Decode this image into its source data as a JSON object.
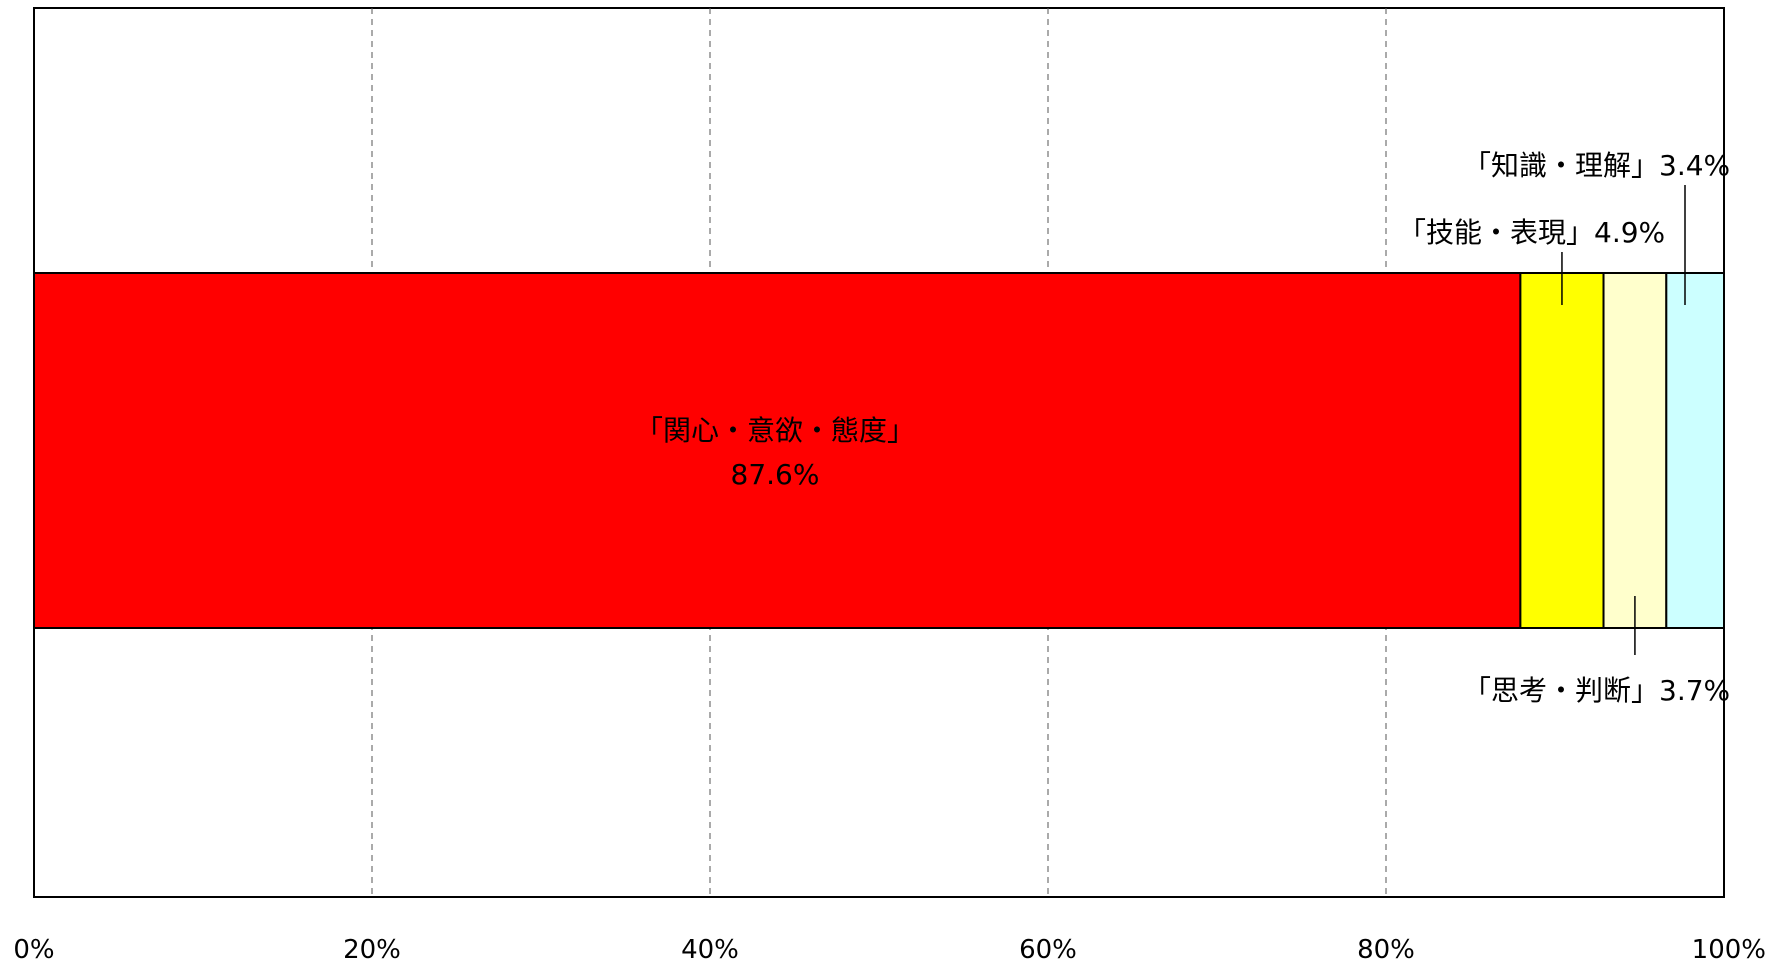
{
  "chart_data": {
    "type": "bar",
    "orientation": "horizontal",
    "stacked": true,
    "xlim": [
      0,
      100
    ],
    "x_ticks": [
      0,
      20,
      40,
      60,
      80,
      100
    ],
    "x_tick_labels": [
      "0%",
      "20%",
      "40%",
      "60%",
      "80%",
      "100%"
    ],
    "grid": "vertical dashed",
    "series": [
      {
        "name": "「関心・意欲・態度」",
        "value": 87.6,
        "value_label": "87.6%",
        "color": "#ff0000"
      },
      {
        "name": "「技能・表現」",
        "value": 4.9,
        "value_label": "4.9%",
        "color": "#ffff00"
      },
      {
        "name": "「思考・判断」",
        "value": 3.7,
        "value_label": "3.7%",
        "color": "#ffffcc"
      },
      {
        "name": "「知識・理解」",
        "value": 3.4,
        "value_label": "3.4%",
        "color": "#ccffff"
      }
    ]
  }
}
